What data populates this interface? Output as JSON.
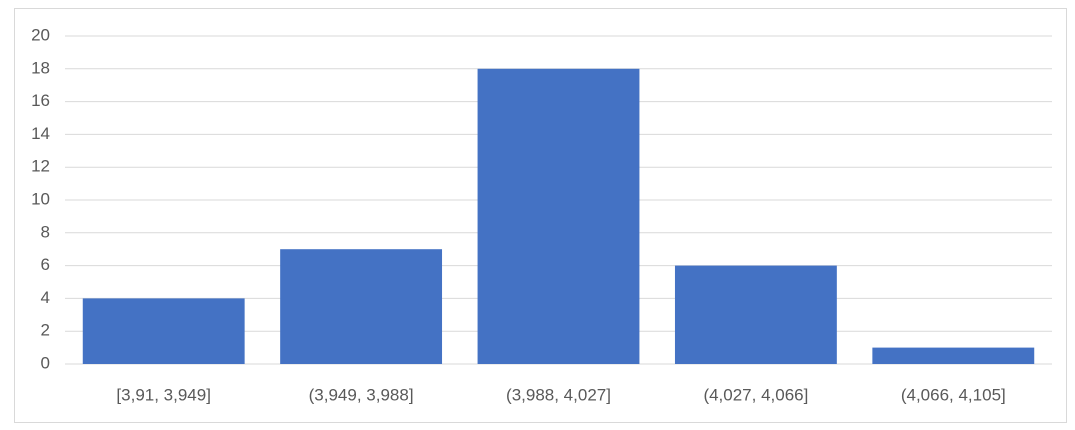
{
  "chart_data": {
    "type": "bar",
    "categories": [
      "[3,91, 3,949]",
      "(3,949, 3,988]",
      "(3,988, 4,027]",
      "(4,027, 4,066]",
      "(4,066, 4,105]"
    ],
    "values": [
      4,
      7,
      18,
      6,
      1
    ],
    "color": "#4472c4",
    "ylim": [
      0,
      20
    ],
    "yticks": [
      0,
      2,
      4,
      6,
      8,
      10,
      12,
      14,
      16,
      18,
      20
    ],
    "grid": true
  }
}
